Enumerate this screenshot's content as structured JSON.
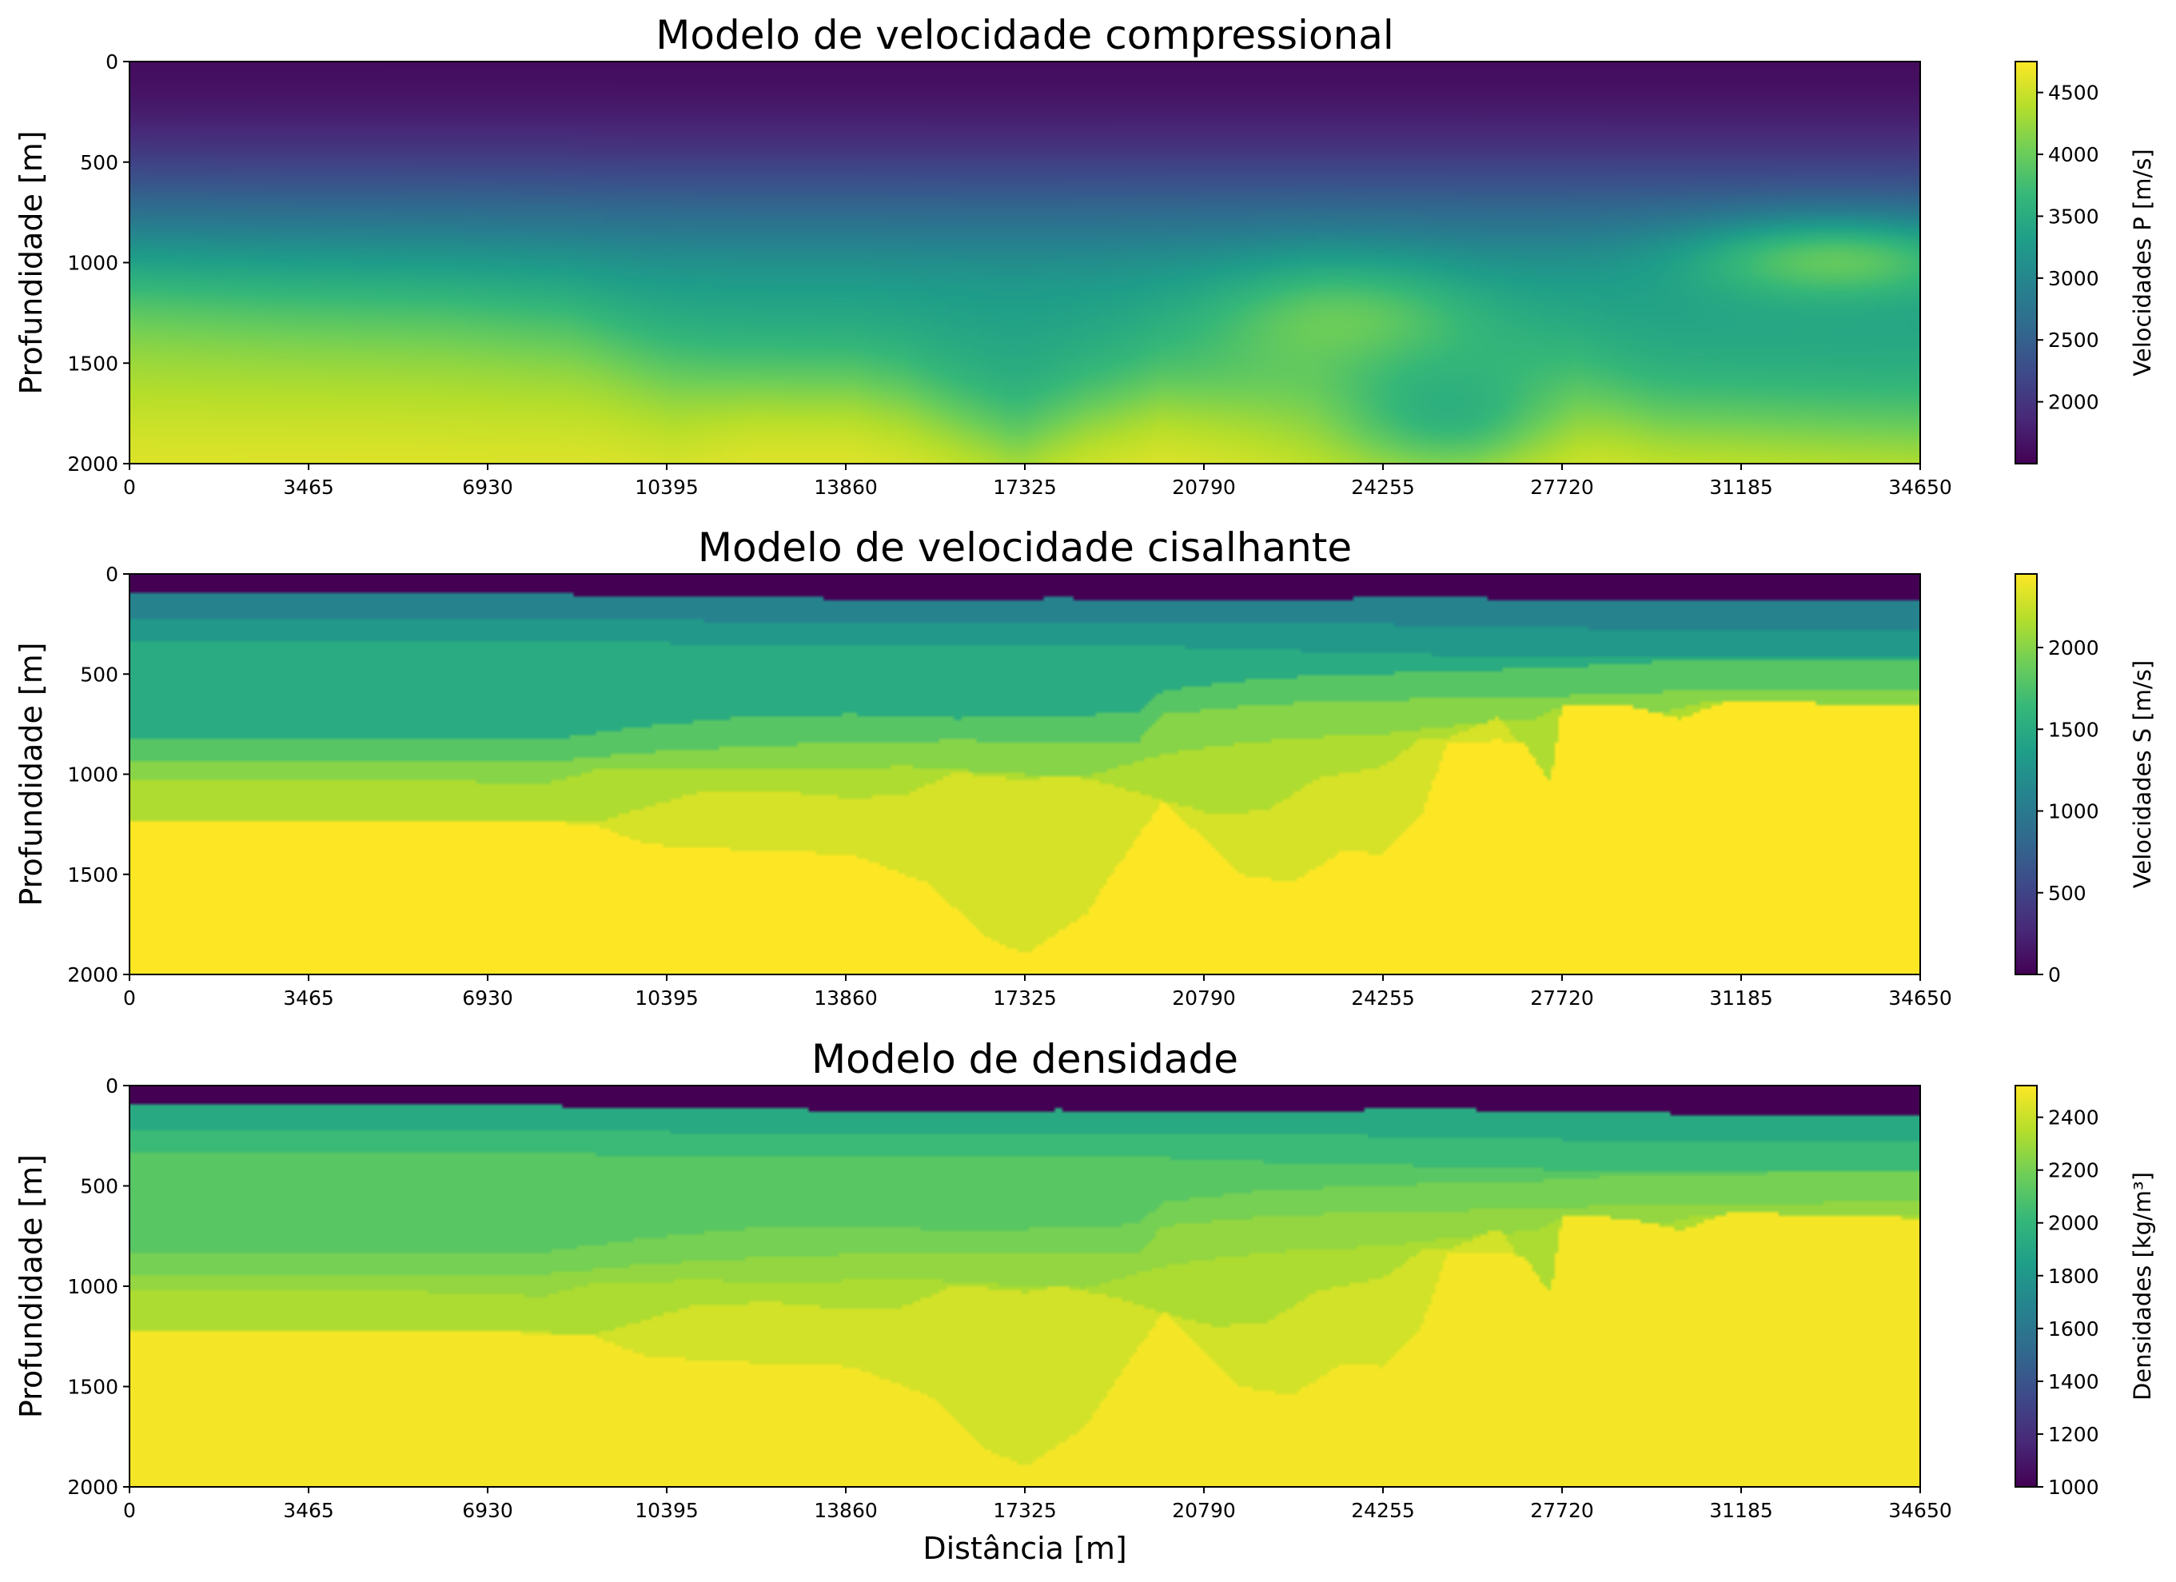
{
  "figure": {
    "xlabel": "Distância [m]",
    "colormap": [
      "#440154",
      "#482878",
      "#3e4989",
      "#31688e",
      "#26828e",
      "#1f9e89",
      "#35b779",
      "#6ece58",
      "#b5de2b",
      "#fde725"
    ]
  },
  "chart_data": [
    {
      "type": "heatmap",
      "title": "Modelo de velocidade compressional",
      "xlabel": "",
      "ylabel": "Profundidade [m]",
      "x_ticks": [
        0,
        3465,
        6930,
        10395,
        13860,
        17325,
        20790,
        24255,
        27720,
        31185,
        34650
      ],
      "y_ticks": [
        0,
        500,
        1000,
        1500,
        2000
      ],
      "xlim": [
        0,
        34650
      ],
      "ylim": [
        2000,
        0
      ],
      "colorbar": {
        "label": "Velocidades P [m/s]",
        "ticks": [
          2000,
          2500,
          3000,
          3500,
          4000,
          4500
        ],
        "range": [
          1500,
          4750
        ]
      },
      "field_model": "smooth",
      "layers": [
        {
          "top_x": [
            0,
            34650
          ],
          "top_y": [
            0,
            0
          ],
          "value": 1550
        },
        {
          "top_x": [
            0,
            34650
          ],
          "top_y": [
            450,
            450
          ],
          "value": 2300
        },
        {
          "top_x": [
            0,
            34650
          ],
          "top_y": [
            850,
            850
          ],
          "value": 3400
        },
        {
          "top_x": [
            0,
            3000,
            6000,
            8500,
            10000,
            12000,
            15000,
            17000,
            20000,
            23000,
            26000,
            28000,
            30000,
            34650
          ],
          "top_y": [
            1200,
            1250,
            1280,
            1350,
            1500,
            1650,
            1700,
            1950,
            1700,
            1500,
            1700,
            1750,
            1850,
            1850
          ],
          "value": 4300
        },
        {
          "top_x": [
            0,
            5000,
            9000,
            10500,
            12000,
            14000,
            16000,
            17325,
            18500,
            20000,
            22000,
            24000,
            26000,
            27000,
            28000,
            29500,
            34650
          ],
          "top_y": [
            1750,
            1760,
            1780,
            1850,
            1730,
            1720,
            1900,
            2000,
            1850,
            1750,
            1900,
            2000,
            1950,
            1800,
            1750,
            1900,
            2000
          ],
          "value": 4650
        }
      ],
      "blobs": [
        {
          "x": 23500,
          "y": 1350,
          "rx": 2500,
          "ry": 300,
          "value": 4050
        },
        {
          "x": 33000,
          "y": 1000,
          "rx": 2800,
          "ry": 200,
          "value": 3950
        },
        {
          "x": 25500,
          "y": 1700,
          "rx": 2000,
          "ry": 300,
          "value": 3550
        }
      ]
    },
    {
      "type": "heatmap",
      "title": "Modelo de velocidade cisalhante",
      "xlabel": "",
      "ylabel": "Profundidade [m]",
      "x_ticks": [
        0,
        3465,
        6930,
        10395,
        13860,
        17325,
        20790,
        24255,
        27720,
        31185,
        34650
      ],
      "y_ticks": [
        0,
        500,
        1000,
        1500,
        2000
      ],
      "xlim": [
        0,
        34650
      ],
      "ylim": [
        2000,
        0
      ],
      "colorbar": {
        "label": "Velocidades S [m/s]",
        "ticks": [
          0,
          500,
          1000,
          1500,
          2000
        ],
        "range": [
          0,
          2450
        ]
      },
      "field_model": "layered",
      "layers": [
        {
          "top_x": [
            0,
            34650
          ],
          "top_y": [
            0,
            0
          ],
          "value": 0
        },
        {
          "top_x": [
            0,
            8000,
            10000,
            13000,
            16000,
            18000,
            20000,
            22000,
            24000,
            26000,
            28000,
            30000,
            34650
          ],
          "top_y": [
            100,
            100,
            110,
            120,
            130,
            120,
            130,
            130,
            120,
            120,
            130,
            140,
            140
          ],
          "value": 1100
        },
        {
          "top_x": [
            0,
            8000,
            10000,
            13000,
            16000,
            18000,
            20000,
            22000,
            24000,
            26000,
            28000,
            30000,
            34650
          ],
          "top_y": [
            220,
            220,
            230,
            240,
            240,
            240,
            240,
            250,
            250,
            260,
            270,
            280,
            280
          ],
          "value": 1300
        },
        {
          "top_x": [
            0,
            8000,
            10000,
            13000,
            16000,
            18000,
            20000,
            22000,
            24000,
            26000,
            28000,
            34650
          ],
          "top_y": [
            340,
            340,
            345,
            350,
            355,
            350,
            360,
            380,
            390,
            410,
            420,
            420
          ],
          "value": 1500
        },
        {
          "top_x": [
            0,
            8000,
            10000,
            12000,
            14000,
            16000,
            18000,
            19500,
            20000,
            22000,
            24000,
            26000,
            27720,
            29000,
            34650
          ],
          "top_y": [
            830,
            830,
            760,
            710,
            700,
            720,
            710,
            690,
            580,
            520,
            500,
            480,
            470,
            440,
            430
          ],
          "value": 1800
        },
        {
          "top_x": [
            0,
            8000,
            10000,
            12000,
            14000,
            16000,
            18000,
            19500,
            20000,
            22000,
            24000,
            26000,
            27720,
            29000,
            34650
          ],
          "top_y": [
            940,
            940,
            890,
            860,
            840,
            830,
            840,
            840,
            700,
            650,
            630,
            620,
            610,
            590,
            580
          ],
          "value": 2000
        },
        {
          "top_x": [
            0,
            5000,
            8000,
            9000,
            11000,
            13000,
            15000,
            17325,
            18500,
            20000,
            21000,
            22500,
            24255,
            25500,
            26500,
            27200,
            27720,
            28500,
            29500,
            30500,
            32000,
            34650
          ],
          "top_y": [
            1020,
            1020,
            1050,
            980,
            970,
            980,
            960,
            1000,
            1010,
            900,
            860,
            820,
            800,
            760,
            740,
            720,
            660,
            650,
            700,
            640,
            650,
            650
          ],
          "value": 2150
        },
        {
          "top_x": [
            0,
            8000,
            9000,
            9800,
            11000,
            12500,
            14000,
            15000,
            16000,
            17325,
            18000,
            19000,
            20000,
            21000,
            22000,
            23000,
            24255,
            25000,
            25500,
            26500,
            27000,
            27500,
            27720,
            29000,
            30000,
            31000,
            32000,
            34650
          ],
          "top_y": [
            1230,
            1230,
            1240,
            1180,
            1090,
            1080,
            1120,
            1100,
            990,
            1030,
            1000,
            1050,
            1130,
            1200,
            1180,
            1020,
            960,
            820,
            820,
            710,
            890,
            1030,
            650,
            660,
            720,
            630,
            640,
            660
          ],
          "value": 2300
        },
        {
          "top_x": [
            0,
            7500,
            9000,
            10000,
            12000,
            14000,
            15500,
            16500,
            17325,
            18500,
            19000,
            20000,
            21500,
            22500,
            23500,
            24255,
            25000,
            25500,
            26500,
            27000,
            27500,
            27720,
            29000,
            30000,
            31000,
            32000,
            34650
          ],
          "top_y": [
            1230,
            1230,
            1250,
            1350,
            1380,
            1400,
            1550,
            1800,
            1900,
            1700,
            1500,
            1130,
            1500,
            1540,
            1380,
            1400,
            1200,
            840,
            830,
            850,
            1040,
            650,
            660,
            720,
            630,
            640,
            660
          ],
          "value": 2450
        }
      ]
    },
    {
      "type": "heatmap",
      "title": "Modelo de densidade",
      "xlabel": "Distância [m]",
      "ylabel": "Profundidade [m]",
      "x_ticks": [
        0,
        3465,
        6930,
        10395,
        13860,
        17325,
        20790,
        24255,
        27720,
        31185,
        34650
      ],
      "y_ticks": [
        0,
        500,
        1000,
        1500,
        2000
      ],
      "xlim": [
        0,
        34650
      ],
      "ylim": [
        2000,
        0
      ],
      "colorbar": {
        "label": "Densidades [kg/m³]",
        "ticks": [
          1000,
          1200,
          1400,
          1600,
          1800,
          2000,
          2200,
          2400
        ],
        "range": [
          1000,
          2520
        ]
      },
      "field_model": "layered",
      "layers": [
        {
          "top_x": [
            0,
            34650
          ],
          "top_y": [
            0,
            0
          ],
          "value": 1000
        },
        {
          "top_x": [
            0,
            8000,
            10000,
            13000,
            16000,
            18000,
            20000,
            22000,
            24000,
            26000,
            28000,
            30000,
            34650
          ],
          "top_y": [
            100,
            100,
            110,
            120,
            130,
            120,
            130,
            130,
            120,
            120,
            130,
            140,
            140
          ],
          "value": 1920
        },
        {
          "top_x": [
            0,
            8000,
            10000,
            13000,
            16000,
            18000,
            20000,
            22000,
            24000,
            26000,
            28000,
            30000,
            34650
          ],
          "top_y": [
            220,
            220,
            230,
            240,
            240,
            240,
            240,
            250,
            250,
            260,
            270,
            280,
            280
          ],
          "value": 2030
        },
        {
          "top_x": [
            0,
            8000,
            10000,
            13000,
            16000,
            18000,
            20000,
            22000,
            24000,
            26000,
            28000,
            34650
          ],
          "top_y": [
            340,
            340,
            345,
            350,
            355,
            350,
            360,
            380,
            390,
            410,
            420,
            420
          ],
          "value": 2120
        },
        {
          "top_x": [
            0,
            8000,
            10000,
            12000,
            14000,
            16000,
            18000,
            19500,
            20000,
            22000,
            24000,
            26000,
            27720,
            29000,
            34650
          ],
          "top_y": [
            830,
            830,
            760,
            710,
            700,
            720,
            710,
            690,
            580,
            520,
            500,
            480,
            470,
            440,
            430
          ],
          "value": 2200
        },
        {
          "top_x": [
            0,
            8000,
            10000,
            12000,
            14000,
            16000,
            18000,
            19500,
            20000,
            22000,
            24000,
            26000,
            27720,
            29000,
            34650
          ],
          "top_y": [
            940,
            940,
            890,
            860,
            840,
            830,
            840,
            840,
            700,
            650,
            630,
            620,
            610,
            590,
            580
          ],
          "value": 2270
        },
        {
          "top_x": [
            0,
            5000,
            8000,
            9000,
            11000,
            13000,
            15000,
            17325,
            18500,
            20000,
            21000,
            22500,
            24255,
            25500,
            26500,
            27200,
            27720,
            28500,
            29500,
            30500,
            32000,
            34650
          ],
          "top_y": [
            1020,
            1020,
            1050,
            980,
            970,
            980,
            960,
            1000,
            1010,
            900,
            860,
            820,
            800,
            760,
            740,
            720,
            660,
            650,
            700,
            640,
            650,
            650
          ],
          "value": 2330
        },
        {
          "top_x": [
            0,
            8000,
            9000,
            9800,
            11000,
            12500,
            14000,
            15000,
            16000,
            17325,
            18000,
            19000,
            20000,
            21000,
            22000,
            23000,
            24255,
            25000,
            25500,
            26500,
            27000,
            27500,
            27720,
            29000,
            30000,
            31000,
            32000,
            34650
          ],
          "top_y": [
            1230,
            1230,
            1240,
            1180,
            1090,
            1080,
            1120,
            1100,
            990,
            1030,
            1000,
            1050,
            1130,
            1200,
            1180,
            1020,
            960,
            820,
            820,
            710,
            890,
            1030,
            650,
            660,
            720,
            630,
            640,
            660
          ],
          "value": 2420
        },
        {
          "top_x": [
            0,
            7500,
            9000,
            10000,
            12000,
            14000,
            15500,
            16500,
            17325,
            18500,
            19000,
            20000,
            21500,
            22500,
            23500,
            24255,
            25000,
            25500,
            26500,
            27000,
            27500,
            27720,
            29000,
            30000,
            31000,
            32000,
            34650
          ],
          "top_y": [
            1230,
            1230,
            1250,
            1350,
            1380,
            1400,
            1550,
            1800,
            1900,
            1700,
            1500,
            1130,
            1500,
            1540,
            1380,
            1400,
            1200,
            840,
            830,
            850,
            1040,
            650,
            660,
            720,
            630,
            640,
            660
          ],
          "value": 2500
        }
      ]
    }
  ]
}
